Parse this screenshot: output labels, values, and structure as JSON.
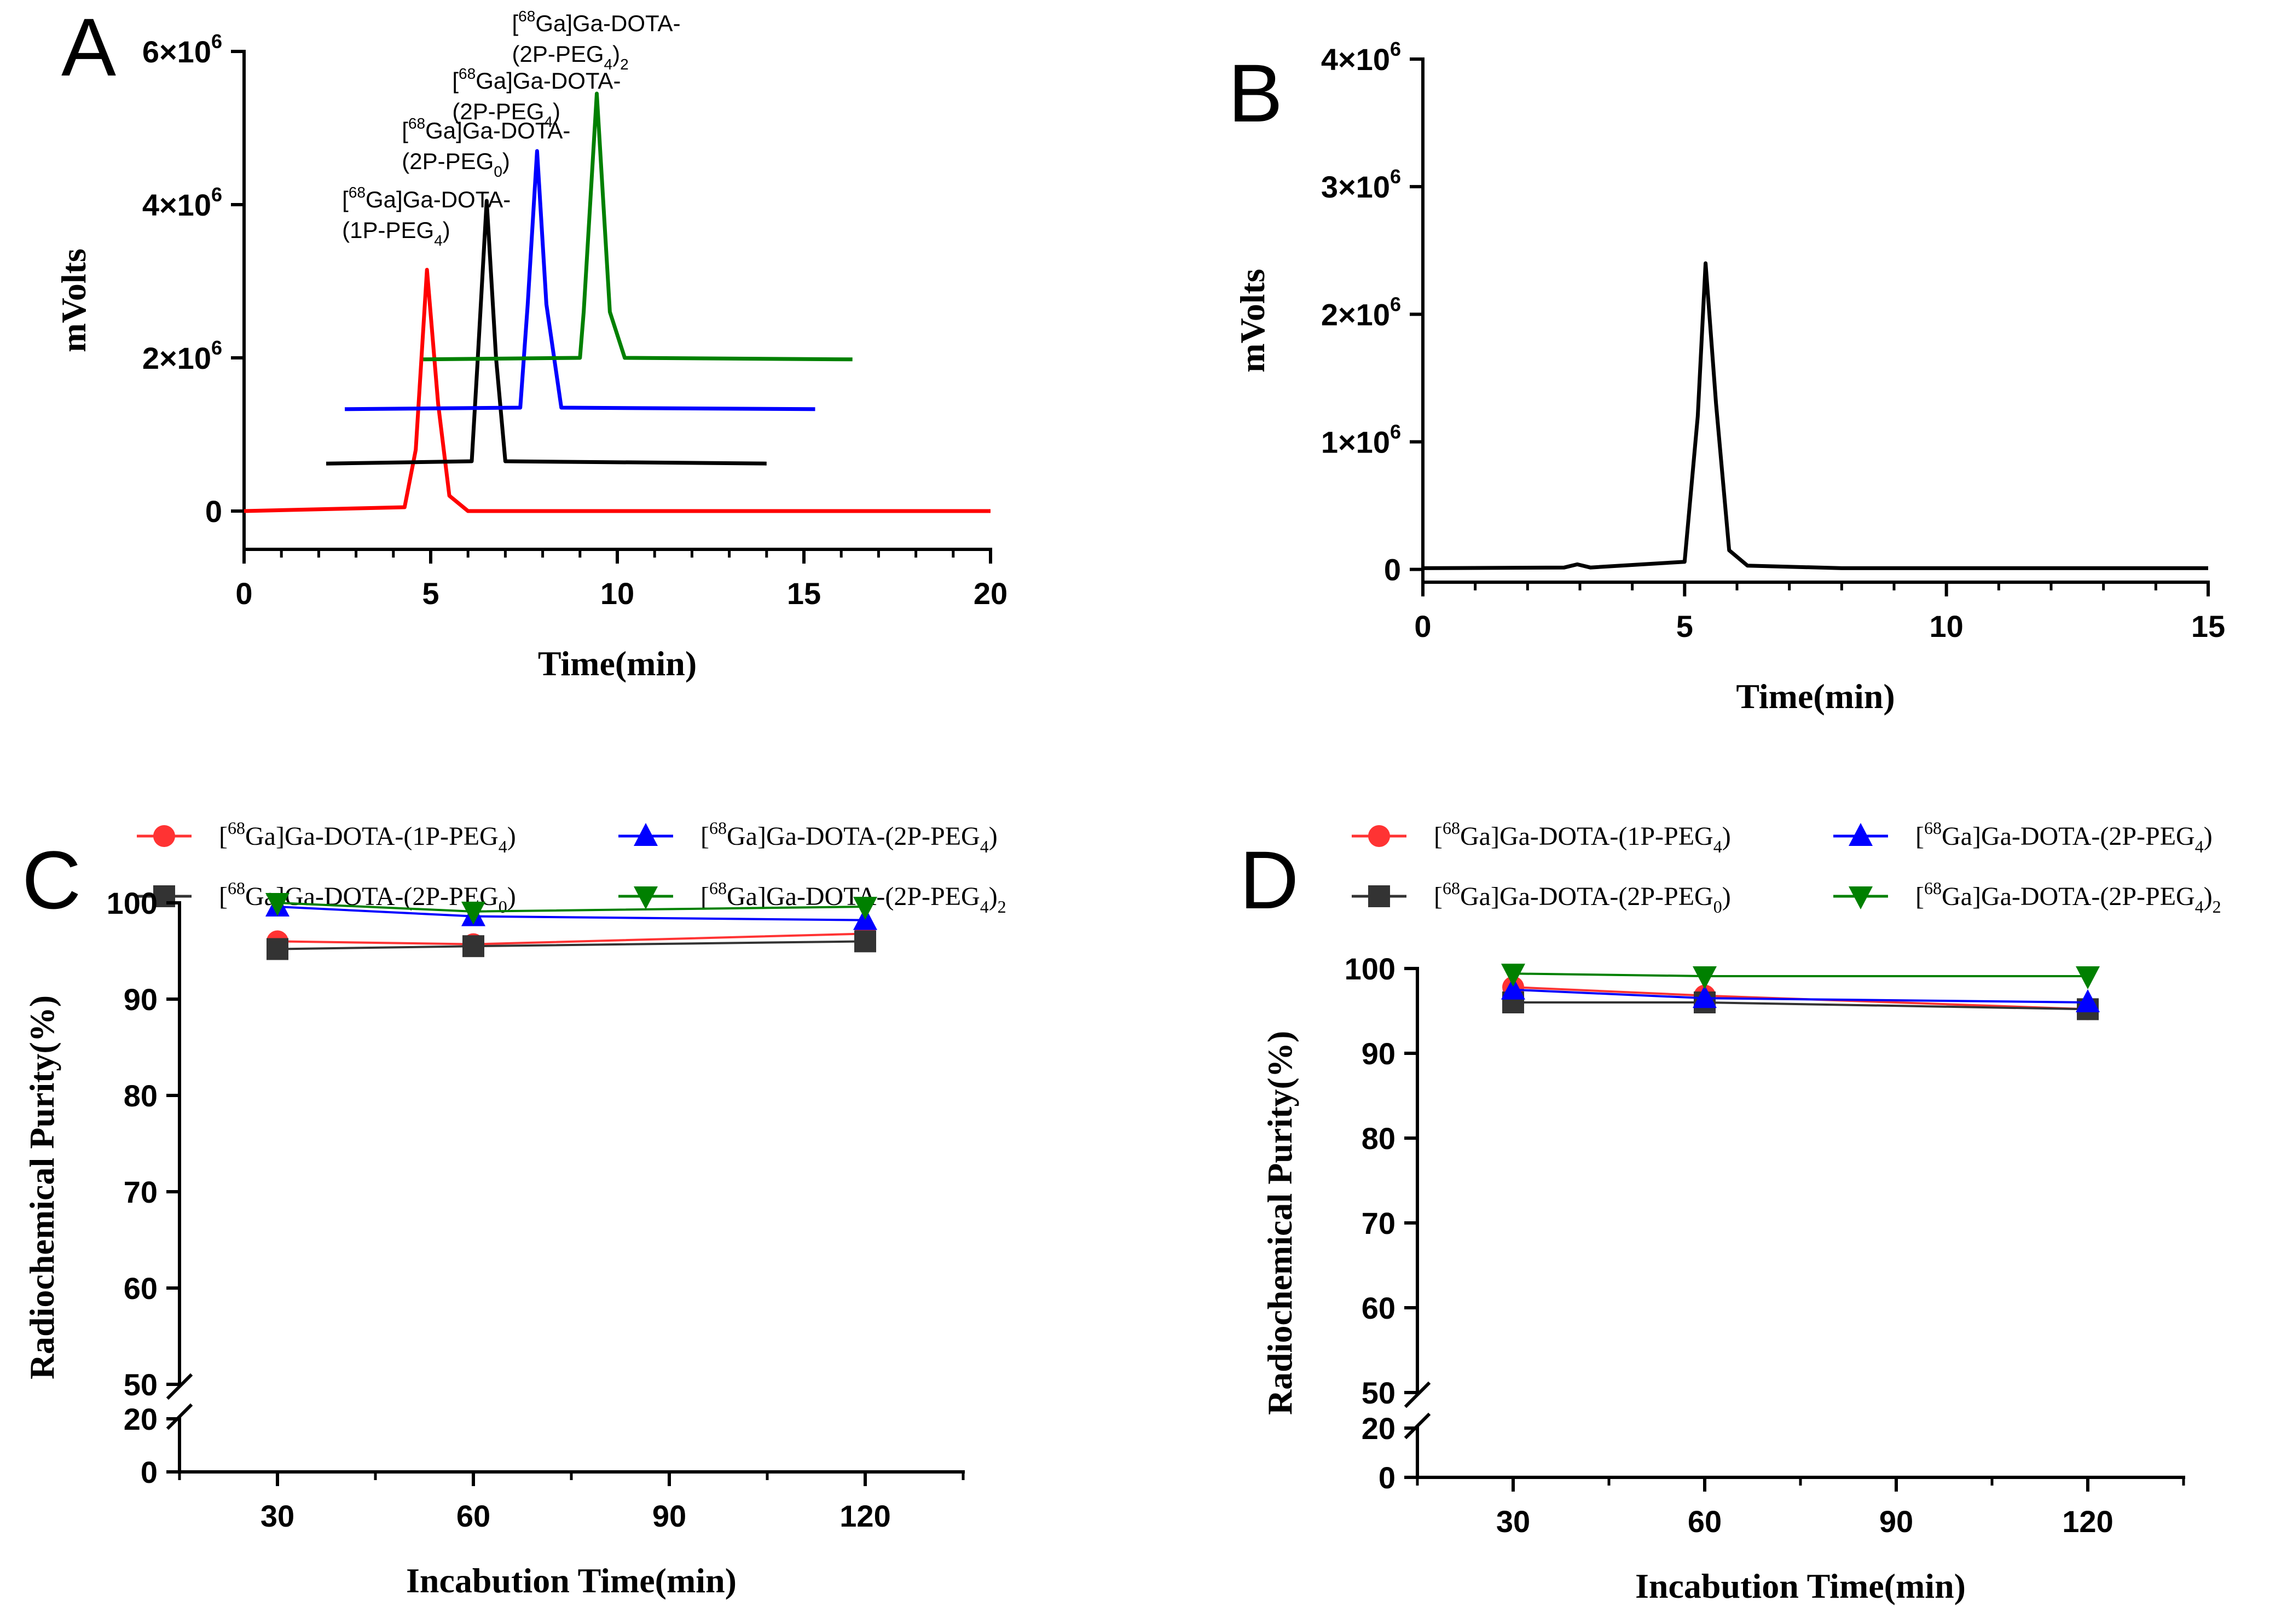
{
  "panels": [
    {
      "id": "A",
      "label": "A"
    },
    {
      "id": "B",
      "label": "B"
    },
    {
      "id": "C",
      "label": "C"
    },
    {
      "id": "D",
      "label": "D"
    }
  ],
  "chart_data": [
    {
      "panel": "A",
      "type": "line",
      "xlabel": "Time(min)",
      "ylabel": "mVolts",
      "xlim": [
        0,
        20
      ],
      "ylim": [
        -500000,
        6000000
      ],
      "xticks": [
        "0",
        "5",
        "10",
        "15",
        "20"
      ],
      "yticks": [
        "0",
        "2×10",
        "4×10",
        "6×10"
      ],
      "ytick_exp": "6",
      "series": [
        {
          "name": "[68Ga]Ga-DOTA-(1P-PEG4)",
          "label_lines": [
            "[",
            "68",
            "Ga]Ga-DOTA-",
            "(1P-PEG",
            "4",
            ")"
          ],
          "color": "#ff0000",
          "x": [
            0,
            4.3,
            4.6,
            4.9,
            5.2,
            5.5,
            6,
            20
          ],
          "y": [
            0,
            50000,
            800000,
            3150000,
            1400000,
            200000,
            0,
            0
          ]
        },
        {
          "name": "[68Ga]Ga-DOTA-(2P-PEG0)",
          "label_lines": [
            "[",
            "68",
            "Ga]Ga-DOTA-",
            "(2P-PEG",
            "0",
            ")"
          ],
          "color": "#000000",
          "x": [
            2.2,
            6.1,
            6.25,
            6.5,
            6.75,
            7.0,
            14
          ],
          "y": [
            620000,
            650000,
            1900000,
            4050000,
            2000000,
            650000,
            620000
          ]
        },
        {
          "name": "[68Ga]Ga-DOTA-(2P-PEG4)",
          "label_lines": [
            "[",
            "68",
            "Ga]Ga-DOTA-",
            "(2P-PEG",
            "4",
            ")"
          ],
          "color": "#0000ff",
          "x": [
            2.7,
            7.4,
            7.6,
            7.85,
            8.1,
            8.5,
            15.3
          ],
          "y": [
            1330000,
            1350000,
            2700000,
            4700000,
            2700000,
            1350000,
            1330000
          ]
        },
        {
          "name": "[68Ga]Ga-DOTA-(2P-PEG4)2",
          "label_lines": [
            "[",
            "68",
            "Ga]Ga-DOTA-",
            "(2P-PEG",
            "4",
            ")",
            "2"
          ],
          "color": "#008000",
          "x": [
            4.8,
            9.0,
            9.1,
            9.45,
            9.8,
            10.2,
            16.3
          ],
          "y": [
            1980000,
            2000000,
            2600000,
            5450000,
            2600000,
            2000000,
            1980000
          ]
        }
      ]
    },
    {
      "panel": "B",
      "type": "line",
      "xlabel": "Time(min)",
      "ylabel": "mVolts",
      "xlim": [
        0,
        15
      ],
      "ylim": [
        -100000,
        4000000
      ],
      "xticks": [
        "0",
        "5",
        "10",
        "15"
      ],
      "yticks": [
        "0",
        "1×10",
        "2×10",
        "3×10",
        "4×10"
      ],
      "ytick_exp": "6",
      "series": [
        {
          "color": "#000000",
          "x": [
            0,
            2.7,
            2.95,
            3.2,
            5.0,
            5.25,
            5.4,
            5.6,
            5.85,
            6.2,
            8,
            15
          ],
          "y": [
            10000,
            15000,
            40000,
            15000,
            60000,
            1200000,
            2400000,
            1300000,
            150000,
            30000,
            10000,
            10000
          ]
        }
      ]
    },
    {
      "panel": "C",
      "type": "line",
      "xlabel": "Incabution Time(min)",
      "ylabel": "Radiochemical Purity(%)",
      "xlim": [
        15,
        135
      ],
      "y_upper_range": [
        50,
        100
      ],
      "y_lower_range": [
        0,
        20
      ],
      "xticks": [
        "30",
        "60",
        "90",
        "120"
      ],
      "yticks_upper": [
        "50",
        "60",
        "70",
        "80",
        "90",
        "100"
      ],
      "yticks_lower": [
        "0",
        "20"
      ],
      "x": [
        30,
        60,
        120
      ],
      "series": [
        {
          "name": "[68Ga]Ga-DOTA-(1P-PEG4)",
          "color": "#ff3333",
          "marker": "circle",
          "values": [
            96.0,
            95.7,
            96.8
          ]
        },
        {
          "name": "[68Ga]Ga-DOTA-(2P-PEG0)",
          "color": "#333333",
          "marker": "square",
          "values": [
            95.2,
            95.5,
            96.0
          ]
        },
        {
          "name": "[68Ga]Ga-DOTA-(2P-PEG4)",
          "color": "#0000ff",
          "marker": "triangle-up",
          "values": [
            99.6,
            98.6,
            98.2
          ]
        },
        {
          "name": "[68Ga]Ga-DOTA-(2P-PEG4)2",
          "color": "#008000",
          "marker": "triangle-down",
          "values": [
            100,
            99.1,
            99.6
          ]
        }
      ]
    },
    {
      "panel": "D",
      "type": "line",
      "xlabel": "Incabution Time(min)",
      "ylabel": "Radiochemical Purity(%)",
      "xlim": [
        15,
        135
      ],
      "y_upper_range": [
        50,
        100
      ],
      "y_lower_range": [
        0,
        20
      ],
      "xticks": [
        "30",
        "60",
        "90",
        "120"
      ],
      "yticks_upper": [
        "50",
        "60",
        "70",
        "80",
        "90",
        "100"
      ],
      "yticks_lower": [
        "0",
        "20"
      ],
      "x": [
        30,
        60,
        120
      ],
      "series": [
        {
          "name": "[68Ga]Ga-DOTA-(1P-PEG4)",
          "color": "#ff3333",
          "marker": "circle",
          "values": [
            97.8,
            96.8,
            95.2
          ]
        },
        {
          "name": "[68Ga]Ga-DOTA-(2P-PEG0)",
          "color": "#333333",
          "marker": "square",
          "values": [
            96.0,
            96.0,
            95.2
          ]
        },
        {
          "name": "[68Ga]Ga-DOTA-(2P-PEG4)",
          "color": "#0000ff",
          "marker": "triangle-up",
          "values": [
            97.5,
            96.5,
            96.0
          ]
        },
        {
          "name": "[68Ga]Ga-DOTA-(2P-PEG4)2",
          "color": "#008000",
          "marker": "triangle-down",
          "values": [
            99.4,
            99.1,
            99.1
          ]
        }
      ]
    }
  ],
  "legend_parts": {
    "open": "[",
    "iso": "68",
    "pre": "Ga]Ga-DOTA-(",
    "items": [
      {
        "mid": "1P-PEG",
        "sub": "4",
        "tail": ")",
        "post": ""
      },
      {
        "mid": "2P-PEG",
        "sub": "0",
        "tail": ")",
        "post": ""
      },
      {
        "mid": "2P-PEG",
        "sub": "4",
        "tail": ")",
        "post": ""
      },
      {
        "mid": "2P-PEG",
        "sub": "4",
        "tail": ")",
        "post": "2"
      }
    ]
  }
}
